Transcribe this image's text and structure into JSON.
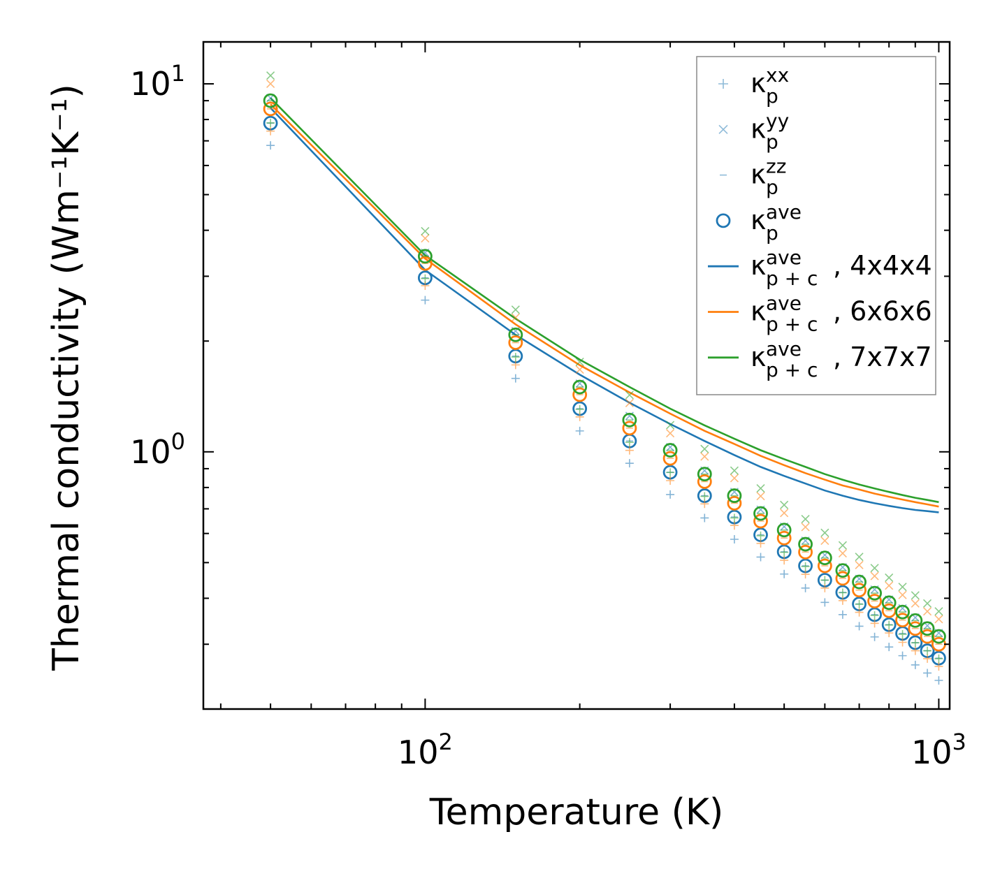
{
  "chart_data": {
    "type": "scatter",
    "title": "",
    "xlabel": "Temperature (K)",
    "ylabel": "Thermal conductivity (Wm⁻¹K⁻¹)",
    "xscale": "log",
    "yscale": "log",
    "xlim": [
      37,
      1050
    ],
    "ylim": [
      0.2,
      13
    ],
    "x_ticks": [
      {
        "value": 100,
        "base": "10",
        "exp": "2"
      },
      {
        "value": 1000,
        "base": "10",
        "exp": "3"
      }
    ],
    "y_ticks": [
      {
        "value": 1,
        "base": "10",
        "exp": "0"
      },
      {
        "value": 10,
        "base": "10",
        "exp": "1"
      }
    ],
    "legend_position": "top-right",
    "colors": {
      "blue": "#1f77b4",
      "orange": "#ff7f0e",
      "green": "#2ca02c"
    },
    "legend": [
      {
        "kind": "plus",
        "sup": "xx",
        "sub": "p",
        "suffix": ""
      },
      {
        "kind": "cross",
        "sup": "yy",
        "sub": "p",
        "suffix": ""
      },
      {
        "kind": "dash",
        "sup": "zz",
        "sub": "p",
        "suffix": ""
      },
      {
        "kind": "circle",
        "sup": "ave",
        "sub": "p",
        "suffix": ""
      },
      {
        "kind": "line",
        "color": "blue",
        "sup": "ave",
        "sub": "p + c",
        "suffix": ", 4x4x4"
      },
      {
        "kind": "line",
        "color": "orange",
        "sup": "ave",
        "sub": "p + c",
        "suffix": ", 6x6x6"
      },
      {
        "kind": "line",
        "color": "green",
        "sup": "ave",
        "sub": "p + c",
        "suffix": ", 7x7x7"
      }
    ],
    "temperatures": [
      50,
      100,
      150,
      200,
      250,
      300,
      350,
      400,
      450,
      500,
      550,
      600,
      650,
      700,
      750,
      800,
      850,
      900,
      950,
      1000
    ],
    "series": [
      {
        "name": "4x4x4",
        "color": "blue",
        "kp_ave": [
          7.82,
          2.97,
          1.82,
          1.31,
          1.07,
          0.88,
          0.76,
          0.665,
          0.595,
          0.535,
          0.49,
          0.448,
          0.415,
          0.386,
          0.361,
          0.339,
          0.321,
          0.303,
          0.288,
          0.275
        ],
        "kpc_ave": [
          8.6,
          3.12,
          2.08,
          1.62,
          1.36,
          1.19,
          1.07,
          0.98,
          0.91,
          0.86,
          0.82,
          0.785,
          0.76,
          0.74,
          0.725,
          0.713,
          0.703,
          0.695,
          0.69,
          0.685
        ]
      },
      {
        "name": "6x6x6",
        "color": "orange",
        "kp_ave": [
          8.55,
          3.25,
          1.98,
          1.43,
          1.16,
          0.96,
          0.83,
          0.725,
          0.648,
          0.583,
          0.534,
          0.49,
          0.453,
          0.421,
          0.393,
          0.37,
          0.349,
          0.331,
          0.315,
          0.3
        ],
        "kpc_ave": [
          8.8,
          3.35,
          2.22,
          1.72,
          1.45,
          1.27,
          1.14,
          1.05,
          0.975,
          0.92,
          0.875,
          0.84,
          0.81,
          0.79,
          0.77,
          0.755,
          0.742,
          0.73,
          0.72,
          0.71
        ]
      },
      {
        "name": "7x7x7",
        "color": "green",
        "kp_ave": [
          9.0,
          3.4,
          2.08,
          1.5,
          1.22,
          1.01,
          0.87,
          0.76,
          0.68,
          0.613,
          0.561,
          0.515,
          0.476,
          0.443,
          0.413,
          0.389,
          0.367,
          0.348,
          0.331,
          0.315
        ],
        "kpc_ave": [
          9.15,
          3.42,
          2.3,
          1.78,
          1.5,
          1.31,
          1.18,
          1.085,
          1.01,
          0.955,
          0.91,
          0.87,
          0.84,
          0.815,
          0.795,
          0.778,
          0.763,
          0.75,
          0.74,
          0.73
        ]
      }
    ],
    "component_factors": {
      "xx": 0.87,
      "yy": 1.17,
      "zz": 1.0
    }
  }
}
